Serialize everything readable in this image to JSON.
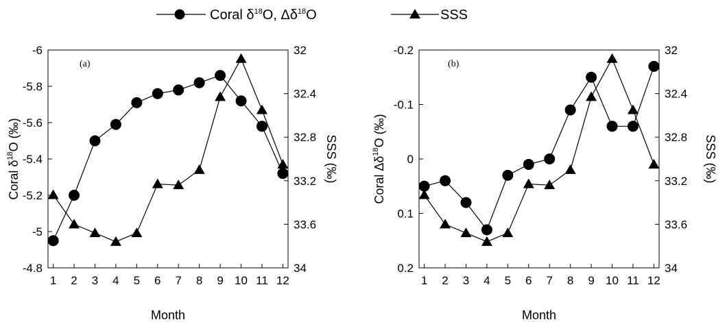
{
  "legend": {
    "series_coral": "Coral δ18O, Δδ18O",
    "series_sss": "SSS"
  },
  "chart_data": [
    {
      "type": "line",
      "panel_label": "(a)",
      "xlabel": "Month",
      "ylabel_left": "Coral δ18O (‰)",
      "ylabel_right": "SSS (‰)",
      "x": [
        1,
        2,
        3,
        4,
        5,
        6,
        7,
        8,
        9,
        10,
        11,
        12
      ],
      "ylim_left": [
        -4.8,
        -6
      ],
      "yticks_left": [
        "-4.8",
        "-5",
        "-5.2",
        "-5.4",
        "-5.6",
        "-5.8",
        "-6"
      ],
      "ylim_right": [
        34,
        32
      ],
      "yticks_right": [
        "34",
        "33.6",
        "33.2",
        "32.8",
        "32.4",
        "32"
      ],
      "series": [
        {
          "name": "Coral δ18O",
          "axis": "left",
          "marker": "circle",
          "values": [
            -4.95,
            -5.2,
            -5.5,
            -5.59,
            -5.71,
            -5.76,
            -5.78,
            -5.82,
            -5.86,
            -5.72,
            -5.58,
            -5.32
          ]
        },
        {
          "name": "SSS",
          "axis": "right",
          "marker": "triangle",
          "values": [
            33.33,
            33.6,
            33.68,
            33.76,
            33.68,
            33.23,
            33.24,
            33.1,
            32.43,
            32.08,
            32.55,
            33.05
          ]
        }
      ]
    },
    {
      "type": "line",
      "panel_label": "(b)",
      "xlabel": "Month",
      "ylabel_left": "Coral Δδ18O (‰)",
      "ylabel_right": "SSS (‰)",
      "x": [
        1,
        2,
        3,
        4,
        5,
        6,
        7,
        8,
        9,
        10,
        11,
        12
      ],
      "ylim_left": [
        0.2,
        -0.2
      ],
      "yticks_left": [
        "0.2",
        "0.1",
        "0",
        "-0.1",
        "-0.2"
      ],
      "ylim_right": [
        34,
        32
      ],
      "yticks_right": [
        "34",
        "33.6",
        "33.2",
        "32.8",
        "32.4",
        "32"
      ],
      "series": [
        {
          "name": "Coral Δδ18O",
          "axis": "left",
          "marker": "circle",
          "values": [
            0.05,
            0.04,
            0.08,
            0.13,
            0.03,
            0.01,
            0.0,
            -0.09,
            -0.15,
            -0.06,
            -0.06,
            -0.17
          ]
        },
        {
          "name": "SSS",
          "axis": "right",
          "marker": "triangle",
          "values": [
            33.33,
            33.6,
            33.68,
            33.76,
            33.68,
            33.23,
            33.24,
            33.1,
            32.43,
            32.08,
            32.55,
            33.05
          ]
        }
      ]
    }
  ]
}
